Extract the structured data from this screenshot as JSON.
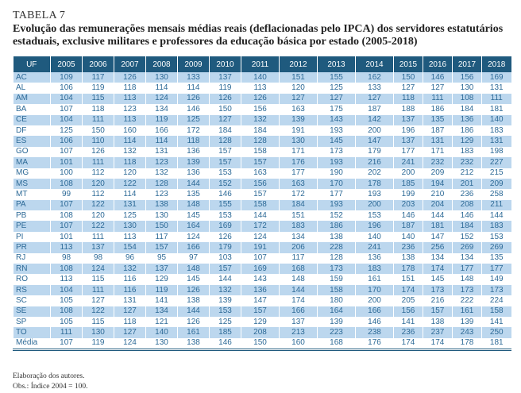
{
  "label": "TABELA 7",
  "title": "Evolução das remunerações mensais médias reais (deflacionadas pelo IPCA) dos servidores estatutários estaduais, exclusive militares e professores da educação básica por estado (2005-2018)",
  "table": {
    "headers": [
      "UF",
      "2005",
      "2006",
      "2007",
      "2008",
      "2009",
      "2010",
      "2011",
      "2012",
      "2013",
      "2014",
      "2015",
      "2016",
      "2017",
      "2018"
    ],
    "rows": [
      [
        "AC",
        109,
        117,
        126,
        130,
        133,
        137,
        140,
        151,
        155,
        162,
        150,
        146,
        156,
        169
      ],
      [
        "AL",
        106,
        119,
        118,
        114,
        114,
        119,
        113,
        120,
        125,
        133,
        127,
        127,
        130,
        131
      ],
      [
        "AM",
        104,
        115,
        113,
        124,
        126,
        126,
        126,
        127,
        127,
        127,
        118,
        111,
        108,
        111
      ],
      [
        "BA",
        107,
        118,
        123,
        134,
        146,
        150,
        156,
        163,
        175,
        187,
        188,
        186,
        184,
        181
      ],
      [
        "CE",
        104,
        111,
        113,
        119,
        125,
        127,
        132,
        139,
        143,
        142,
        137,
        135,
        136,
        140
      ],
      [
        "DF",
        125,
        150,
        160,
        166,
        172,
        184,
        184,
        191,
        193,
        200,
        196,
        187,
        186,
        183
      ],
      [
        "ES",
        106,
        110,
        114,
        114,
        118,
        128,
        128,
        130,
        145,
        147,
        137,
        131,
        129,
        131
      ],
      [
        "GO",
        107,
        126,
        132,
        131,
        136,
        157,
        158,
        171,
        173,
        179,
        177,
        171,
        183,
        198
      ],
      [
        "MA",
        101,
        111,
        118,
        123,
        139,
        157,
        157,
        176,
        193,
        216,
        241,
        232,
        232,
        227
      ],
      [
        "MG",
        100,
        112,
        120,
        132,
        136,
        153,
        163,
        177,
        190,
        202,
        200,
        209,
        212,
        215
      ],
      [
        "MS",
        108,
        120,
        122,
        128,
        144,
        152,
        156,
        163,
        170,
        178,
        185,
        194,
        201,
        209
      ],
      [
        "MT",
        99,
        112,
        114,
        123,
        135,
        146,
        157,
        172,
        177,
        193,
        199,
        210,
        236,
        258
      ],
      [
        "PA",
        107,
        122,
        131,
        138,
        148,
        155,
        158,
        184,
        193,
        200,
        203,
        204,
        208,
        211
      ],
      [
        "PB",
        108,
        120,
        125,
        130,
        145,
        153,
        144,
        151,
        152,
        153,
        146,
        144,
        146,
        144
      ],
      [
        "PE",
        107,
        122,
        130,
        150,
        164,
        169,
        172,
        183,
        186,
        196,
        187,
        181,
        184,
        183
      ],
      [
        "PI",
        101,
        111,
        113,
        117,
        124,
        126,
        124,
        134,
        138,
        140,
        140,
        147,
        152,
        153
      ],
      [
        "PR",
        113,
        137,
        154,
        157,
        166,
        179,
        191,
        206,
        228,
        241,
        236,
        256,
        269,
        269
      ],
      [
        "RJ",
        98,
        98,
        96,
        95,
        97,
        103,
        107,
        117,
        128,
        136,
        138,
        134,
        134,
        135
      ],
      [
        "RN",
        108,
        124,
        132,
        137,
        148,
        157,
        169,
        168,
        173,
        183,
        178,
        174,
        177,
        177
      ],
      [
        "RO",
        113,
        115,
        116,
        129,
        145,
        144,
        143,
        148,
        159,
        161,
        151,
        145,
        148,
        149
      ],
      [
        "RS",
        104,
        111,
        116,
        119,
        126,
        132,
        136,
        144,
        158,
        170,
        174,
        173,
        173,
        173
      ],
      [
        "SC",
        105,
        127,
        131,
        141,
        138,
        139,
        147,
        174,
        180,
        200,
        205,
        216,
        222,
        224
      ],
      [
        "SE",
        108,
        122,
        127,
        134,
        144,
        153,
        157,
        166,
        164,
        166,
        156,
        157,
        161,
        158
      ],
      [
        "SP",
        105,
        115,
        118,
        121,
        126,
        125,
        129,
        137,
        139,
        146,
        141,
        138,
        139,
        141
      ],
      [
        "TO",
        111,
        130,
        127,
        140,
        161,
        185,
        208,
        213,
        223,
        238,
        236,
        237,
        243,
        250
      ],
      [
        "Média",
        107,
        119,
        124,
        130,
        138,
        146,
        150,
        160,
        168,
        176,
        174,
        174,
        178,
        181
      ]
    ]
  },
  "source": "Elaboração dos autores.",
  "note": "Obs.: Índice 2004 = 100.",
  "colors": {
    "header_bg": "#1f5a7e",
    "stripe": "#bcd7ee",
    "cell_text": "#2d6a97"
  }
}
